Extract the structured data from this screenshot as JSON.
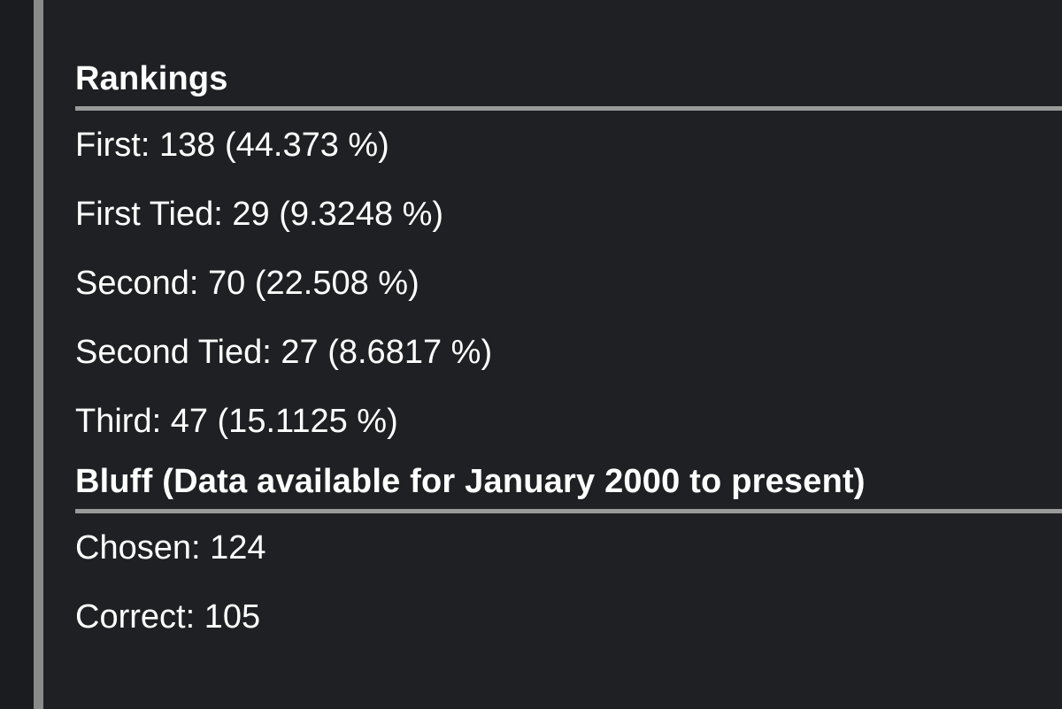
{
  "rankings": {
    "heading": "Rankings",
    "items": [
      {
        "label": "First:",
        "value": "138 (44.373 %)"
      },
      {
        "label": "First Tied:",
        "value": "29 (9.3248 %)"
      },
      {
        "label": "Second:",
        "value": "70 (22.508 %)"
      },
      {
        "label": "Second Tied:",
        "value": "27 (8.6817 %)"
      },
      {
        "label": "Third:",
        "value": "47 (15.1125 %)"
      }
    ]
  },
  "bluff": {
    "heading": "Bluff (Data available for January 2000 to present)",
    "items": [
      {
        "label": "Chosen:",
        "value": "124"
      },
      {
        "label": "Correct:",
        "value": "105"
      }
    ]
  }
}
